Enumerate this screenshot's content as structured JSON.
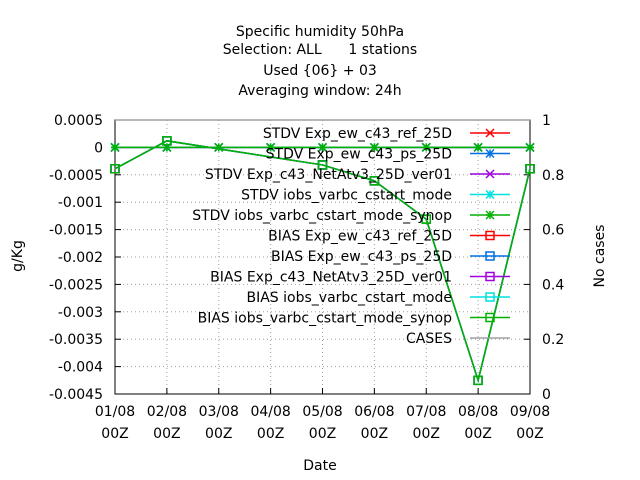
{
  "chart_data": {
    "type": "line",
    "title_lines": [
      "Specific humidity 50hPa",
      "Selection: ALL      1 stations",
      "Used {06} + 03",
      "Averaging window: 24h"
    ],
    "xlabel": "Date",
    "ylabel": "g/Kg",
    "y2label": "No cases",
    "x_ticks": [
      "01/08 00Z",
      "02/08 00Z",
      "03/08 00Z",
      "04/08 00Z",
      "05/08 00Z",
      "06/08 00Z",
      "07/08 00Z",
      "08/08 00Z",
      "09/08 00Z"
    ],
    "ylim": [
      -0.0045,
      0.0005
    ],
    "y_ticks": [
      "0.0005",
      "0",
      "-0.0005",
      "-0.001",
      "-0.0015",
      "-0.002",
      "-0.0025",
      "-0.003",
      "-0.0035",
      "-0.004",
      "-0.0045"
    ],
    "y2lim": [
      0,
      1
    ],
    "y2_ticks": [
      "0",
      "0.2",
      "0.4",
      "0.6",
      "0.8",
      "1"
    ],
    "grid": true,
    "legend_position": "top-right",
    "series": [
      {
        "name": "STDV Exp_ew_c43_ref_25D",
        "color": "#ff0000",
        "marker": "x",
        "values": [
          0,
          0,
          0,
          0,
          0,
          0,
          0,
          0,
          0
        ]
      },
      {
        "name": "STDV Exp_ew_c43_ps_25D",
        "color": "#0070e0",
        "marker": "star",
        "values": [
          0,
          0,
          0,
          0,
          0,
          0,
          0,
          0,
          0
        ]
      },
      {
        "name": "STDV Exp_c43_NetAtv3_25D_ver01",
        "color": "#a000e0",
        "marker": "x",
        "values": [
          0,
          0,
          0,
          0,
          0,
          0,
          0,
          0,
          0
        ]
      },
      {
        "name": "STDV iobs_varbc_cstart_mode",
        "color": "#00e0e0",
        "marker": "star",
        "values": [
          0,
          0,
          0,
          0,
          0,
          0,
          0,
          0,
          0
        ]
      },
      {
        "name": "STDV iobs_varbc_cstart_mode_synop",
        "color": "#00b000",
        "marker": "star",
        "values": [
          0,
          0,
          0,
          0,
          0,
          0,
          0,
          0,
          0
        ]
      },
      {
        "name": "BIAS Exp_ew_c43_ref_25D",
        "color": "#ff0000",
        "marker": "square",
        "values": [
          -0.00039,
          0.00012,
          null,
          null,
          -0.00032,
          -0.00061,
          -0.00131,
          -0.00425,
          -0.00039
        ]
      },
      {
        "name": "BIAS Exp_ew_c43_ps_25D",
        "color": "#0070e0",
        "marker": "square",
        "values": [
          -0.00039,
          0.00012,
          null,
          null,
          -0.00032,
          -0.00061,
          -0.00131,
          -0.00425,
          -0.00039
        ]
      },
      {
        "name": "BIAS Exp_c43_NetAtv3_25D_ver01",
        "color": "#a000e0",
        "marker": "square",
        "values": [
          -0.00039,
          0.00012,
          null,
          null,
          -0.00032,
          -0.00061,
          -0.00131,
          -0.00425,
          -0.00039
        ]
      },
      {
        "name": "BIAS iobs_varbc_cstart_mode",
        "color": "#00e0e0",
        "marker": "square",
        "values": [
          -0.00039,
          0.00012,
          null,
          null,
          -0.00032,
          -0.00061,
          -0.00131,
          -0.00425,
          -0.00039
        ]
      },
      {
        "name": "BIAS iobs_varbc_cstart_mode_synop",
        "color": "#00b000",
        "marker": "square",
        "values": [
          -0.00039,
          0.00012,
          null,
          null,
          -0.00032,
          -0.00061,
          -0.00131,
          -0.00425,
          -0.00039
        ]
      },
      {
        "name": "CASES",
        "color": "#a0a0a0",
        "marker": "none",
        "axis": "y2",
        "values": [
          1,
          1,
          1,
          1,
          1,
          1,
          1,
          1,
          1
        ]
      }
    ]
  }
}
